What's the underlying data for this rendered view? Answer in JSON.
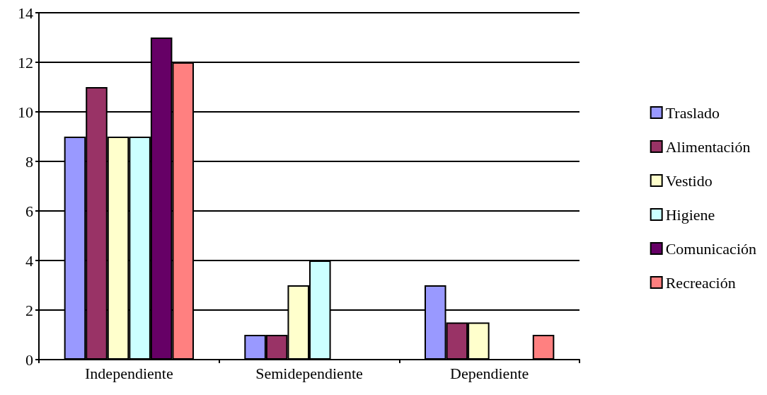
{
  "chart_data": {
    "type": "bar",
    "categories": [
      "Independiente",
      "Semidependiente",
      "Dependiente"
    ],
    "series": [
      {
        "name": "Traslado",
        "color": "#9999ff",
        "values": [
          9,
          1,
          3
        ]
      },
      {
        "name": "Alimentación",
        "color": "#993366",
        "values": [
          11,
          1,
          1.5
        ]
      },
      {
        "name": "Vestido",
        "color": "#ffffcc",
        "values": [
          9,
          3,
          1.5
        ]
      },
      {
        "name": "Higiene",
        "color": "#ccffff",
        "values": [
          9,
          4,
          null
        ]
      },
      {
        "name": "Comunicación",
        "color": "#660066",
        "values": [
          13,
          null,
          null
        ]
      },
      {
        "name": "Recreación",
        "color": "#ff8080",
        "values": [
          12,
          null,
          1
        ]
      }
    ],
    "ylim": [
      0,
      14
    ],
    "yticks": [
      0,
      2,
      4,
      6,
      8,
      10,
      12,
      14
    ],
    "grid": "y",
    "legend": "right"
  }
}
